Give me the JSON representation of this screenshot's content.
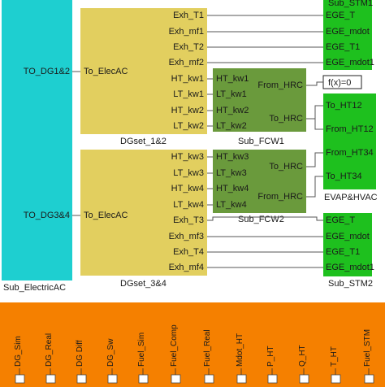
{
  "blocks": {
    "sub_electric": {
      "name": "Sub_ElectricAC",
      "ports_out": [
        "TO_DG1&2",
        "TO_DG3&4"
      ],
      "color": "#1ecfd0"
    },
    "dgset12": {
      "name": "DGset_1&2",
      "port_in": "To_ElecAC",
      "ports_out": [
        "Exh_T1",
        "Exh_mf1",
        "Exh_T2",
        "Exh_mf2",
        "HT_kw1",
        "LT_kw1",
        "HT_kw2",
        "LT_kw2"
      ],
      "color": "#e2cf5f"
    },
    "dgset34": {
      "name": "DGset_3&4",
      "port_in": "To_ElecAC",
      "ports_out": [
        "HT_kw3",
        "LT_kw3",
        "HT_kw4",
        "LT_kw4",
        "Exh_T3",
        "Exh_mf3",
        "Exh_T4",
        "Exh_mf4"
      ],
      "color": "#e2cf5f"
    },
    "sub_fcw1": {
      "name": "Sub_FCW1",
      "ports_in": [
        "HT_kw1",
        "LT_kw1",
        "HT_kw2",
        "LT_kw2"
      ],
      "ports_out": [
        "From_HRC",
        "To_HRC"
      ],
      "color": "#6a9a3c"
    },
    "sub_fcw2": {
      "name": "Sub_FCW2",
      "ports_in": [
        "HT_kw3",
        "LT_kw3",
        "HT_kw4",
        "LT_kw4"
      ],
      "ports_out": [
        "To_HRC",
        "From_HRC"
      ],
      "color": "#6a9a3c"
    },
    "sub_stm1": {
      "name": "Sub_STM1",
      "ports_in": [
        "EGE_T",
        "EGE_mdot",
        "EGE_T1",
        "EGE_mdot1"
      ],
      "color": "#1ec01e"
    },
    "sub_stm2": {
      "name": "Sub_STM2",
      "ports_in": [
        "EGE_T",
        "EGE_mdot",
        "EGE_T1",
        "EGE_mdot1"
      ],
      "color": "#1ec01e"
    },
    "fcn": {
      "label": "f(x)=0"
    },
    "evap": {
      "name": "EVAP&HVAC",
      "ports_in": [
        "To_HT12",
        "From_HT12",
        "From_HT34",
        "To_HT34"
      ],
      "color": "#1ec01e"
    },
    "bottom": {
      "color": "#f58000",
      "signals": [
        "DG_Sim",
        "DG_Real",
        "DG Diff",
        "DG_Sw",
        "Fuel_Sim",
        "Fuel_Comp",
        "Fuel_Real",
        "Mdot_HT",
        "P_HT",
        "Q_HT",
        "T_HT",
        "Fuel_STM"
      ]
    }
  }
}
